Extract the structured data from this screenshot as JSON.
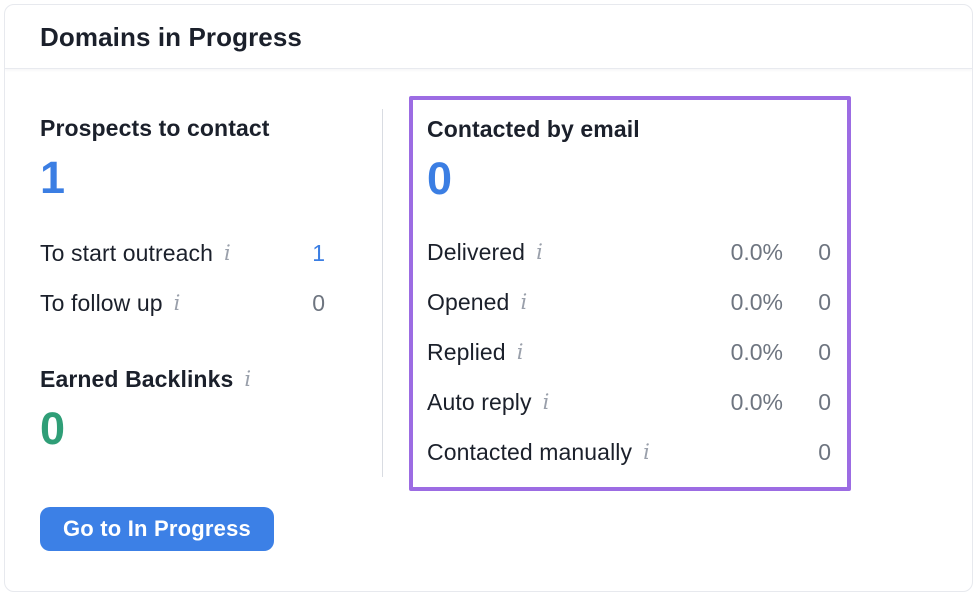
{
  "card": {
    "title": "Domains in Progress"
  },
  "icons": {
    "info_glyph": "i"
  },
  "colors": {
    "accent_blue": "#3b7ee3",
    "accent_green": "#2f9e77",
    "highlight_purple": "#9c6ce3",
    "value_gray": "#6e7580",
    "text_dark": "#1b202b",
    "button_blue": "#3c80e6"
  },
  "left_panel": {
    "heading": "Prospects to contact",
    "big_value": "1",
    "rows": [
      {
        "label": "To start outreach",
        "value": "1"
      },
      {
        "label": "To follow up",
        "value": "0"
      }
    ],
    "earned_backlinks": {
      "heading": "Earned Backlinks",
      "value": "0"
    },
    "go_button_label": "Go to In Progress"
  },
  "right_panel": {
    "heading": "Contacted by email",
    "big_value": "0",
    "rows": [
      {
        "label": "Delivered",
        "percent": "0.0%",
        "count": "0"
      },
      {
        "label": "Opened",
        "percent": "0.0%",
        "count": "0"
      },
      {
        "label": "Replied",
        "percent": "0.0%",
        "count": "0"
      },
      {
        "label": "Auto reply",
        "percent": "0.0%",
        "count": "0"
      },
      {
        "label": "Contacted manually",
        "percent": "",
        "count": "0"
      }
    ]
  }
}
